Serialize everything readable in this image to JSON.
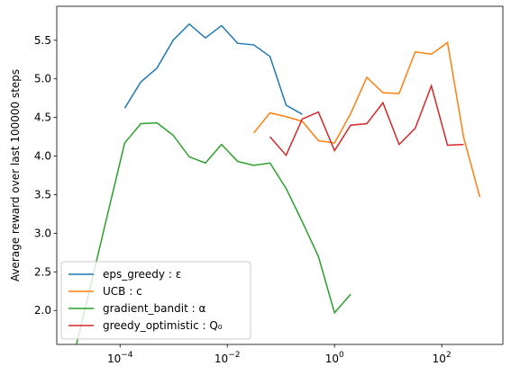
{
  "chart_data": {
    "type": "line",
    "y_label": "Average reward over last 100000 steps",
    "log_x": true,
    "legend": "lower left",
    "xlim": [
      6.6e-06,
      1380
    ],
    "ylim": [
      1.56,
      5.94
    ],
    "xticks": [
      {
        "value": 0.0001,
        "label": "10",
        "sup": "−4"
      },
      {
        "value": 0.01,
        "label": "10",
        "sup": "−2"
      },
      {
        "value": 1,
        "label": "10",
        "sup": "0"
      },
      {
        "value": 100,
        "label": "10",
        "sup": "2"
      }
    ],
    "yticks": [
      {
        "value": 2,
        "label": "2.0"
      },
      2.5,
      {
        "value": 3,
        "label": "3.0"
      },
      3.5,
      {
        "value": 4,
        "label": "4.0"
      },
      4.5,
      {
        "value": 5,
        "label": "5.0"
      },
      5.5
    ],
    "series": [
      {
        "name": "eps_greedy : ε",
        "color": "#1f77b4",
        "x": [
          0.0001220703125,
          0.000244140625,
          0.00048828125,
          0.0009765625,
          0.001953125,
          0.00390625,
          0.0078125,
          0.015625,
          0.03125,
          0.0625,
          0.125,
          0.25
        ],
        "values": [
          4.62,
          4.96,
          5.14,
          5.5,
          5.71,
          5.53,
          5.69,
          5.46,
          5.44,
          5.29,
          4.66,
          4.54
        ]
      },
      {
        "name": "UCB : c",
        "color": "#ff7f0e",
        "x": [
          0.03125,
          0.0625,
          0.125,
          0.25,
          0.5,
          1,
          2,
          4,
          8,
          16,
          32,
          64,
          128,
          256,
          512
        ],
        "values": [
          4.3,
          4.56,
          4.51,
          4.45,
          4.2,
          4.17,
          4.55,
          5.02,
          4.82,
          4.81,
          5.35,
          5.32,
          5.47,
          4.24,
          3.47
        ]
      },
      {
        "name": "gradient_bandit : α",
        "color": "#2ca02c",
        "x": [
          1.52587890625e-05,
          3.0517578125e-05,
          6.103515625e-05,
          0.0001220703125,
          0.000244140625,
          0.00048828125,
          0.0009765625,
          0.001953125,
          0.00390625,
          0.0078125,
          0.015625,
          0.03125,
          0.0625,
          0.125,
          0.25,
          0.5,
          1,
          2
        ],
        "values": [
          1.55,
          2.42,
          3.3,
          4.17,
          4.42,
          4.43,
          4.27,
          3.99,
          3.91,
          4.15,
          3.93,
          3.88,
          3.91,
          3.58,
          3.15,
          2.7,
          1.97,
          2.21
        ]
      },
      {
        "name": "greedy_optimistic : Q₀",
        "color": "#d62728",
        "x": [
          0.0625,
          0.125,
          0.25,
          0.5,
          1,
          2,
          4,
          8,
          16,
          32,
          64,
          128,
          256
        ],
        "values": [
          4.25,
          4.01,
          4.48,
          4.57,
          4.07,
          4.4,
          4.42,
          4.69,
          4.15,
          4.36,
          4.91,
          4.14,
          4.15
        ]
      }
    ]
  }
}
